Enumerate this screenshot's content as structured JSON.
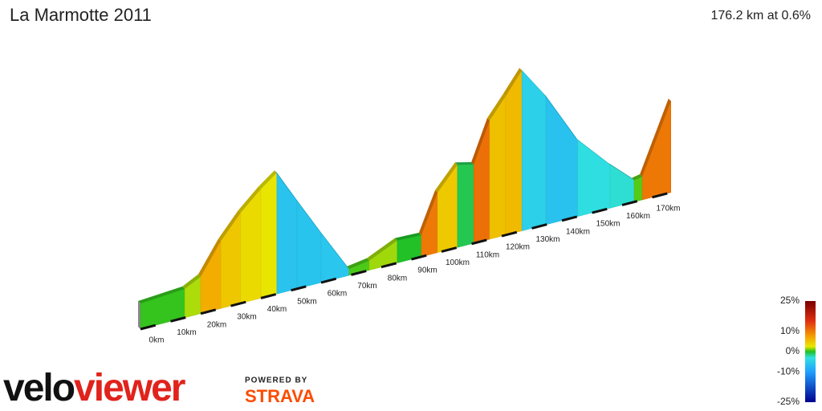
{
  "chart_data": {
    "type": "elevation-profile",
    "title": "La Marmotte 2011",
    "subtitle": "176.2 km at 0.6%",
    "x": [
      0,
      14.7,
      20,
      26.7,
      33.3,
      40,
      45.3,
      52,
      60,
      69.3,
      76,
      85.3,
      93.3,
      98.7,
      105.3,
      110.7,
      116,
      121.3,
      126.7,
      134.7,
      145.3,
      156,
      164,
      166.7,
      176.2
    ],
    "elevation": [
      718,
      762,
      873,
      1293,
      1613,
      1867,
      2033,
      1580,
      1050,
      453,
      497,
      674,
      663,
      1193,
      1503,
      1448,
      2000,
      2276,
      2575,
      2133,
      1414,
      961,
      663,
      685,
      1624
    ],
    "xticks": [
      {
        "value": 0,
        "label": "0km"
      },
      {
        "value": 10,
        "label": "10km"
      },
      {
        "value": 20,
        "label": "20km"
      },
      {
        "value": 30,
        "label": "30km"
      },
      {
        "value": 40,
        "label": "40km"
      },
      {
        "value": 50,
        "label": "50km"
      },
      {
        "value": 60,
        "label": "60km"
      },
      {
        "value": 70,
        "label": "70km"
      },
      {
        "value": 80,
        "label": "80km"
      },
      {
        "value": 90,
        "label": "90km"
      },
      {
        "value": 100,
        "label": "100km"
      },
      {
        "value": 110,
        "label": "110km"
      },
      {
        "value": 120,
        "label": "120km"
      },
      {
        "value": 130,
        "label": "130km"
      },
      {
        "value": 140,
        "label": "140km"
      },
      {
        "value": 150,
        "label": "150km"
      },
      {
        "value": 160,
        "label": "160km"
      },
      {
        "value": 170,
        "label": "170km"
      }
    ],
    "colorbar": {
      "lim": [
        -25,
        25
      ],
      "ticks": [
        {
          "value": 25,
          "label": "25%"
        },
        {
          "value": 10,
          "label": "10%"
        },
        {
          "value": 0,
          "label": "0%"
        },
        {
          "value": -10,
          "label": "-10%"
        },
        {
          "value": -25,
          "label": "-25%"
        }
      ]
    }
  },
  "logo": {
    "velo": "velo",
    "viewer": "viewer",
    "powered": "POWERED BY",
    "strava": "STRAVA"
  }
}
